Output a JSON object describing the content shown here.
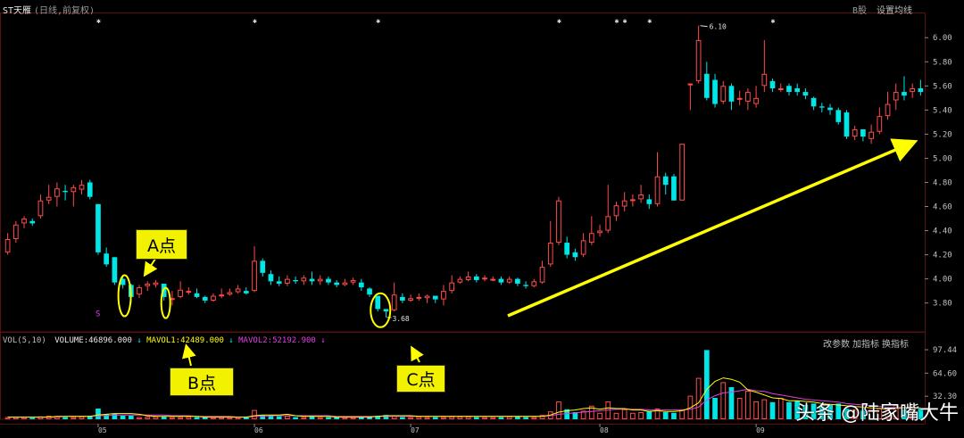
{
  "header": {
    "stock_name": "ST天雁",
    "period": "(日线,前复权)",
    "b_share": "B股",
    "ma_settings": "设置均线"
  },
  "volume_header": {
    "indicator": "VOL(5,10)",
    "volume": "VOLUME:46896.000",
    "mavol1": "MAVOL1:42489.000",
    "mavol2": "MAVOL2:52192.900",
    "buttons": [
      "改参数",
      "加指标",
      "换指标"
    ]
  },
  "annotations": {
    "a": "A点",
    "b": "B点",
    "c": "C点",
    "low_marker": "3.68",
    "high_marker": "6.10",
    "s_marker": "S"
  },
  "watermark": "头条 @陆家嘴大牛",
  "colors": {
    "up": "#ff4b4b",
    "down": "#00e5e5",
    "highlight": "#ffff00",
    "mavol1": "#ffff00",
    "mavol2": "#e040e0",
    "axis_text": "#c0c0c0",
    "grid": "#5a1010"
  },
  "chart_data": {
    "type": "candlestick",
    "price_axis": {
      "ticks": [
        "6.00",
        "5.80",
        "5.60",
        "5.40",
        "5.20",
        "5.00",
        "4.80",
        "4.60",
        "4.40",
        "4.20",
        "4.00",
        "3.80"
      ]
    },
    "volume_axis": {
      "ticks": [
        "97.44",
        "64.60",
        "32.30"
      ]
    },
    "x_tick_labels": [
      "05",
      "06",
      "07",
      "08",
      "09"
    ],
    "x_tick_index": [
      11,
      30,
      49,
      72,
      91
    ],
    "candles": [
      [
        4.22,
        4.33,
        4.38,
        4.2
      ],
      [
        4.33,
        4.45,
        4.48,
        4.3
      ],
      [
        4.46,
        4.5,
        4.52,
        4.42
      ],
      [
        4.48,
        4.46,
        4.5,
        4.44
      ],
      [
        4.52,
        4.65,
        4.7,
        4.5
      ],
      [
        4.65,
        4.68,
        4.78,
        4.62
      ],
      [
        4.68,
        4.75,
        4.8,
        4.6
      ],
      [
        4.73,
        4.72,
        4.78,
        4.65
      ],
      [
        4.72,
        4.76,
        4.78,
        4.6
      ],
      [
        4.74,
        4.78,
        4.82,
        4.7
      ],
      [
        4.8,
        4.68,
        4.82,
        4.66
      ],
      [
        4.62,
        4.22,
        4.62,
        4.2
      ],
      [
        4.21,
        4.12,
        4.26,
        4.1
      ],
      [
        4.18,
        3.97,
        4.18,
        3.95
      ],
      [
        4.0,
        3.95,
        4.02,
        3.92
      ],
      [
        3.95,
        3.85,
        3.96,
        3.8
      ],
      [
        3.87,
        3.93,
        3.95,
        3.84
      ],
      [
        3.94,
        3.96,
        3.98,
        3.9
      ],
      [
        3.95,
        3.97,
        3.99,
        3.93
      ],
      [
        3.96,
        3.85,
        3.96,
        3.82
      ],
      [
        3.83,
        3.84,
        3.9,
        3.78
      ],
      [
        3.85,
        3.91,
        3.98,
        3.84
      ],
      [
        3.89,
        3.9,
        3.93,
        3.87
      ],
      [
        3.88,
        3.85,
        3.92,
        3.84
      ],
      [
        3.85,
        3.82,
        3.86,
        3.8
      ],
      [
        3.82,
        3.86,
        3.88,
        3.81
      ],
      [
        3.86,
        3.87,
        3.92,
        3.84
      ],
      [
        3.87,
        3.89,
        3.92,
        3.86
      ],
      [
        3.89,
        3.92,
        3.95,
        3.88
      ],
      [
        3.9,
        3.88,
        3.93,
        3.87
      ],
      [
        3.9,
        4.15,
        4.27,
        3.89
      ],
      [
        4.15,
        4.05,
        4.17,
        4.02
      ],
      [
        4.04,
        3.98,
        4.07,
        3.95
      ],
      [
        3.98,
        3.96,
        4.02,
        3.94
      ],
      [
        3.96,
        4.0,
        4.03,
        3.94
      ],
      [
        3.99,
        3.98,
        4.02,
        3.96
      ],
      [
        3.98,
        4.01,
        4.03,
        3.95
      ],
      [
        4.0,
        3.98,
        4.06,
        3.95
      ],
      [
        3.98,
        4.0,
        4.03,
        3.95
      ],
      [
        4.0,
        3.97,
        4.02,
        3.95
      ],
      [
        3.97,
        3.95,
        3.99,
        3.93
      ],
      [
        3.95,
        3.97,
        4.0,
        3.94
      ],
      [
        3.97,
        3.99,
        4.01,
        3.95
      ],
      [
        3.97,
        3.93,
        4.0,
        3.9
      ],
      [
        3.92,
        3.87,
        3.93,
        3.85
      ],
      [
        3.86,
        3.75,
        3.86,
        3.73
      ],
      [
        3.75,
        3.73,
        3.75,
        3.68
      ],
      [
        3.74,
        3.87,
        3.97,
        3.73
      ],
      [
        3.85,
        3.82,
        3.88,
        3.8
      ],
      [
        3.82,
        3.84,
        3.87,
        3.81
      ],
      [
        3.84,
        3.85,
        3.88,
        3.82
      ],
      [
        3.84,
        3.86,
        3.87,
        3.8
      ],
      [
        3.86,
        3.83,
        3.86,
        3.8
      ],
      [
        3.83,
        3.9,
        3.95,
        3.78
      ],
      [
        3.9,
        3.97,
        4.03,
        3.88
      ],
      [
        3.97,
        4.0,
        4.02,
        3.96
      ],
      [
        3.99,
        4.02,
        4.06,
        3.98
      ],
      [
        4.02,
        3.99,
        4.04,
        3.97
      ],
      [
        4.0,
        4.01,
        4.03,
        3.98
      ],
      [
        4.0,
        4.0,
        4.02,
        3.98
      ],
      [
        4.0,
        3.97,
        4.02,
        3.95
      ],
      [
        3.97,
        4.0,
        4.02,
        3.96
      ],
      [
        4.0,
        3.96,
        4.01,
        3.94
      ],
      [
        3.95,
        3.94,
        3.98,
        3.92
      ],
      [
        3.94,
        3.98,
        4.0,
        3.93
      ],
      [
        3.97,
        4.1,
        4.15,
        3.96
      ],
      [
        4.12,
        4.3,
        4.48,
        4.1
      ],
      [
        4.3,
        4.65,
        4.68,
        4.28
      ],
      [
        4.3,
        4.2,
        4.35,
        4.17
      ],
      [
        4.22,
        4.18,
        4.25,
        4.15
      ],
      [
        4.2,
        4.32,
        4.38,
        4.18
      ],
      [
        4.3,
        4.38,
        4.52,
        4.28
      ],
      [
        4.38,
        4.4,
        4.45,
        4.35
      ],
      [
        4.4,
        4.52,
        4.78,
        4.38
      ],
      [
        4.52,
        4.61,
        4.64,
        4.48
      ],
      [
        4.6,
        4.65,
        4.72,
        4.56
      ],
      [
        4.65,
        4.66,
        4.7,
        4.6
      ],
      [
        4.66,
        4.7,
        4.78,
        4.63
      ],
      [
        4.66,
        4.62,
        4.7,
        4.58
      ],
      [
        4.62,
        4.85,
        5.05,
        4.6
      ],
      [
        4.85,
        4.78,
        4.88,
        4.7
      ],
      [
        4.85,
        4.65,
        4.87,
        4.65
      ],
      [
        4.65,
        5.12,
        5.12,
        4.65
      ],
      [
        5.62,
        5.62,
        5.62,
        5.4
      ],
      [
        5.64,
        5.98,
        6.1,
        5.62
      ],
      [
        5.7,
        5.5,
        5.8,
        5.48
      ],
      [
        5.65,
        5.45,
        5.7,
        5.42
      ],
      [
        5.47,
        5.6,
        5.64,
        5.45
      ],
      [
        5.6,
        5.47,
        5.62,
        5.4
      ],
      [
        5.5,
        5.5,
        5.56,
        5.44
      ],
      [
        5.47,
        5.55,
        5.58,
        5.4
      ],
      [
        5.45,
        5.5,
        5.6,
        5.42
      ],
      [
        5.6,
        5.7,
        5.98,
        5.55
      ],
      [
        5.64,
        5.58,
        5.66,
        5.55
      ],
      [
        5.58,
        5.58,
        5.62,
        5.55
      ],
      [
        5.6,
        5.55,
        5.62,
        5.52
      ],
      [
        5.58,
        5.55,
        5.62,
        5.52
      ],
      [
        5.55,
        5.52,
        5.58,
        5.49
      ],
      [
        5.5,
        5.43,
        5.51,
        5.4
      ],
      [
        5.43,
        5.42,
        5.46,
        5.38
      ],
      [
        5.42,
        5.4,
        5.45,
        5.36
      ],
      [
        5.4,
        5.3,
        5.42,
        5.28
      ],
      [
        5.38,
        5.18,
        5.4,
        5.16
      ],
      [
        5.18,
        5.24,
        5.27,
        5.15
      ],
      [
        5.24,
        5.18,
        5.24,
        5.14
      ],
      [
        5.16,
        5.22,
        5.28,
        5.12
      ],
      [
        5.22,
        5.35,
        5.42,
        5.2
      ],
      [
        5.35,
        5.45,
        5.55,
        5.32
      ],
      [
        5.48,
        5.55,
        5.62,
        5.4
      ],
      [
        5.55,
        5.52,
        5.68,
        5.48
      ],
      [
        5.55,
        5.58,
        5.62,
        5.5
      ],
      [
        5.58,
        5.55,
        5.65,
        5.52
      ]
    ],
    "volumes": [
      3,
      3,
      3,
      2,
      4,
      5,
      4,
      3,
      3,
      4,
      5,
      15,
      7,
      8,
      5,
      5,
      3,
      4,
      4,
      4,
      3,
      3,
      4,
      3,
      3,
      3,
      3,
      3,
      3,
      3,
      13,
      6,
      5,
      4,
      5,
      3,
      3,
      4,
      3,
      3,
      3,
      3,
      3,
      3,
      4,
      5,
      6,
      5,
      3,
      3,
      4,
      3,
      3,
      3,
      4,
      4,
      4,
      3,
      3,
      3,
      3,
      4,
      4,
      3,
      3,
      6,
      11,
      25,
      14,
      10,
      12,
      19,
      9,
      25,
      9,
      14,
      9,
      10,
      11,
      15,
      10,
      9,
      14,
      33,
      58,
      97,
      30,
      52,
      45,
      30,
      40,
      25,
      28,
      24,
      30,
      24,
      26,
      20,
      22,
      18,
      20,
      22,
      15,
      14,
      12,
      14,
      16,
      15,
      20,
      14,
      18,
      15
    ],
    "mavol1": [
      3,
      3,
      3,
      3,
      3,
      3,
      4,
      4,
      4,
      4,
      4,
      6,
      7,
      8,
      8,
      8,
      7,
      5,
      4,
      4,
      4,
      4,
      4,
      4,
      3,
      3,
      3,
      3,
      3,
      3,
      5,
      6,
      6,
      6,
      7,
      5,
      4,
      4,
      4,
      4,
      3,
      3,
      3,
      3,
      3,
      4,
      5,
      5,
      5,
      5,
      4,
      4,
      4,
      4,
      4,
      4,
      4,
      4,
      4,
      4,
      4,
      4,
      4,
      4,
      4,
      4,
      6,
      10,
      12,
      13,
      15,
      16,
      14,
      16,
      15,
      15,
      13,
      13,
      11,
      12,
      11,
      11,
      12,
      16,
      23,
      42,
      53,
      58,
      56,
      52,
      41,
      38,
      34,
      30,
      29,
      26,
      26,
      25,
      24,
      22,
      21,
      20,
      19,
      18,
      17,
      16,
      15,
      14,
      15,
      16,
      16,
      16
    ],
    "mavol2": [
      3,
      3,
      3,
      3,
      3,
      3,
      3,
      4,
      4,
      4,
      4,
      5,
      5,
      6,
      6,
      6,
      6,
      6,
      6,
      6,
      5,
      5,
      5,
      4,
      4,
      4,
      4,
      4,
      3,
      3,
      4,
      4,
      5,
      5,
      5,
      5,
      5,
      5,
      5,
      5,
      4,
      4,
      4,
      4,
      4,
      4,
      4,
      4,
      4,
      4,
      4,
      4,
      4,
      4,
      4,
      4,
      4,
      4,
      4,
      4,
      4,
      4,
      4,
      4,
      4,
      4,
      5,
      7,
      8,
      9,
      10,
      11,
      12,
      13,
      14,
      14,
      14,
      14,
      13,
      13,
      13,
      13,
      13,
      14,
      17,
      27,
      33,
      37,
      38,
      40,
      42,
      40,
      39,
      36,
      34,
      32,
      30,
      28,
      27,
      26,
      25,
      24,
      22,
      21,
      20,
      19,
      18,
      17,
      17,
      17,
      16,
      16
    ]
  }
}
